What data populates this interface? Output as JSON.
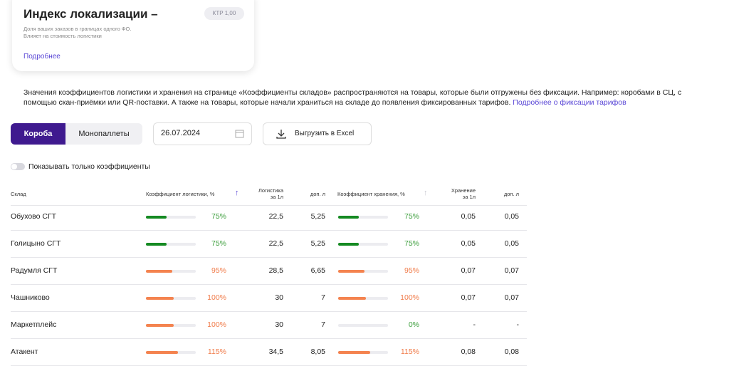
{
  "card": {
    "title": "Индекс локализации –",
    "badge": "КТР 1,00",
    "description": [
      "Доля ваших заказов в границах одного ФО.",
      "Влияет на стоимость логистики"
    ],
    "link": "Подробнее"
  },
  "notice": {
    "text": [
      "Значения коэффициентов логистики и хранения на странице «Коэффициенты складов» распространяются на товары, которые были отгружены без фиксации. Например: коробами в СЦ, с",
      "помощью скан-приёмки или QR-поставки. А также на товары, которые начали храниться на складе до появления фиксированных тарифов."
    ],
    "link": "Подробнее о фиксации тарифов"
  },
  "tabs": [
    "Короба",
    "Монопаллеты"
  ],
  "date": "26.07.2024",
  "export": "Выгрузить в Excel",
  "toggle": "Показывать только коэффициенты",
  "table": {
    "headers": [
      [
        "Склад"
      ],
      [
        "Коэффициент логистики, %"
      ],
      [
        "Логистика",
        "за 1л"
      ],
      [
        "доп. л"
      ],
      [
        "Коэффициент хранения, %"
      ],
      [
        "Хранение",
        "за 1л"
      ],
      [
        "доп. л"
      ]
    ],
    "rows": [
      [
        "Обухово СГТ",
        "75%",
        "22,5",
        "5,25",
        "75%",
        "0,05",
        "0,05"
      ],
      [
        "Голицыно СГТ",
        "75%",
        "22,5",
        "5,25",
        "75%",
        "0,05",
        "0,05"
      ],
      [
        "Радумля СГТ",
        "95%",
        "28,5",
        "6,65",
        "95%",
        "0,07",
        "0,07"
      ],
      [
        "Чашниково",
        "100%",
        "30",
        "7",
        "100%",
        "0,07",
        "0,07"
      ],
      [
        "Маркетплейс",
        "100%",
        "30",
        "7",
        "0%",
        "-",
        "-"
      ],
      [
        "Атакент",
        "115%",
        "34,5",
        "8,05",
        "115%",
        "0,08",
        "0,08"
      ]
    ]
  }
}
